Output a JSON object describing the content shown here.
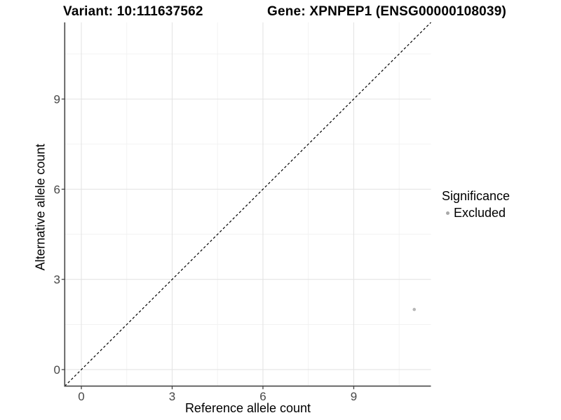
{
  "header": {
    "variant_title": "Variant: 10:111637562",
    "gene_title": "Gene: XPNPEP1 (ENSG00000108039)"
  },
  "legend": {
    "title": "Significance",
    "items": [
      {
        "label": "Excluded",
        "color": "#a9a9a9",
        "marker": "circle-icon"
      }
    ]
  },
  "chart_data": {
    "type": "scatter",
    "title": "",
    "xlabel": "Reference allele count",
    "ylabel": "Alternative allele count",
    "xlim": [
      -0.55,
      11.55
    ],
    "ylim": [
      -0.55,
      11.55
    ],
    "x_ticks": [
      0,
      3,
      6,
      9
    ],
    "y_ticks": [
      0,
      3,
      6,
      9
    ],
    "x_minor_ticks": [
      1.5,
      4.5,
      7.5,
      10.5
    ],
    "y_minor_ticks": [
      1.5,
      4.5,
      7.5,
      10.5
    ],
    "grid": true,
    "legend_position": "right",
    "series": [
      {
        "name": "Excluded",
        "color": "#b7b7b7",
        "points": [
          {
            "x": 11,
            "y": 2
          }
        ]
      }
    ],
    "reference_line": {
      "type": "y=x",
      "style": "dashed",
      "color": "#000000"
    }
  },
  "style": {
    "grid_major_color": "#e4e4e4",
    "grid_minor_color": "#f1f1f1",
    "axis_line_color": "#474747",
    "tick_label_color": "#474747",
    "title_color": "#000000",
    "background_color": "#ffffff"
  }
}
